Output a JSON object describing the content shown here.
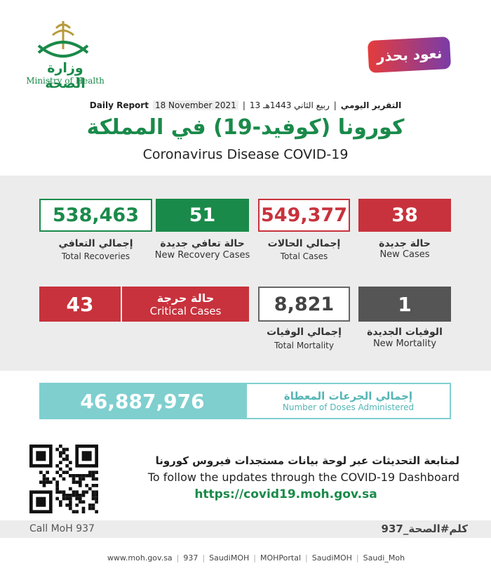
{
  "logo": {
    "arabic": "وزارة الصحة",
    "english": "Ministry of Health"
  },
  "badge": "نعود بحذر",
  "header": {
    "report_ar": "التقرير اليومي",
    "date_hijri": "13 ربيع الثاني 1443هـ",
    "date": "18 November 2021",
    "report_en": "Daily Report",
    "title_ar": "كورونا (كوفيد-19) في المملكة",
    "title_en": "Coronavirus Disease COVID-19"
  },
  "stats": {
    "total_recoveries": {
      "value": "538,463",
      "label_ar": "إجمالي التعافي",
      "label_en": "Total Recoveries"
    },
    "new_recoveries": {
      "value": "51",
      "label_ar": "حالة تعافي جديدة",
      "label_en": "New Recovery Cases"
    },
    "total_cases": {
      "value": "549,377",
      "label_ar": "إجمالي الحالات",
      "label_en": "Total Cases"
    },
    "new_cases": {
      "value": "38",
      "label_ar": "حالة جديدة",
      "label_en": "New Cases"
    },
    "critical_cases": {
      "value": "43",
      "label_ar": "حالة حرجة",
      "label_en": "Critical Cases"
    },
    "total_mortality": {
      "value": "8,821",
      "label_ar": "إجمالي الوفيات",
      "label_en": "Total Mortality"
    },
    "new_mortality": {
      "value": "1",
      "label_ar": "الوفيات الجديدة",
      "label_en": "New Mortality"
    }
  },
  "doses": {
    "value": "46,887,976",
    "label_ar": "إجمالي الجرعات المعطاة",
    "label_en": "Number of Doses Administered"
  },
  "dashboard": {
    "text_ar": "لمتابعة التحديثات عبر لوحة بيانات مستجدات فيروس كورونا",
    "text_en": "To follow the updates through the COVID-19 Dashboard",
    "url": "https://covid19.moh.gov.sa"
  },
  "bar": {
    "left": "Call MoH 937",
    "right": "كلم#الصحة_937"
  },
  "footer": [
    "www.moh.gov.sa",
    "937",
    "SaudiMOH",
    "MOHPortal",
    "SaudiMOH",
    "Saudi_Moh"
  ]
}
